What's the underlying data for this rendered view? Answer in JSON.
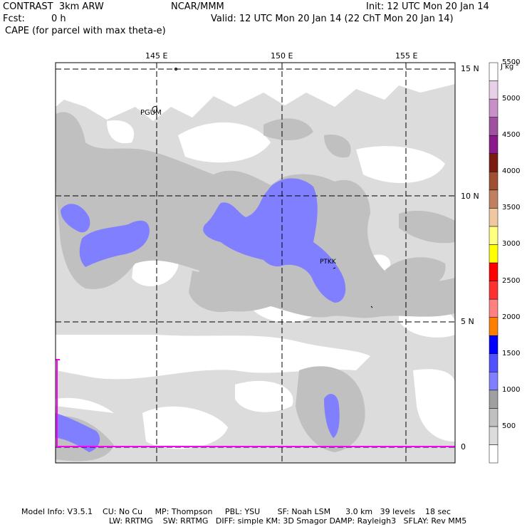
{
  "header": {
    "model": "CONTRAST  3km ARW",
    "org": "NCAR/MMM",
    "init": "Init: 12 UTC Mon 20 Jan 14",
    "fcst_label": "Fcst:",
    "fcst_value": "0 h",
    "valid": "Valid: 12 UTC Mon 20 Jan 14 (22 ChT Mon 20 Jan 14)",
    "field": "CAPE (for parcel with max theta-e)"
  },
  "map": {
    "lon_labels": [
      "145 E",
      "150 E",
      "155 E"
    ],
    "lat_labels": [
      "15 N",
      "10 N",
      "5 N",
      "0"
    ],
    "stations": [
      "PGUM",
      "PTKK"
    ]
  },
  "colorbar": {
    "unit": "J kg",
    "unit_exp": "-1",
    "tick_labels": [
      "500",
      "1000",
      "1500",
      "2000",
      "2500",
      "3000",
      "3500",
      "4000",
      "4500",
      "5000",
      "5500"
    ],
    "colors": [
      "#ffffff",
      "#dcdcdc",
      "#c0c0c0",
      "#a0a0a0",
      "#7f7fff",
      "#5050ff",
      "#0000ff",
      "#ff8000",
      "#ff8080",
      "#ff3030",
      "#ff0000",
      "#ffff00",
      "#ffff80",
      "#f0c8a0",
      "#c08060",
      "#a05030",
      "#7a1a10",
      "#8a1a8a",
      "#a050a0",
      "#c890c8",
      "#e8d0e8",
      "#ffffff"
    ]
  },
  "footer": {
    "line1": "Model Info: V3.5.1    CU: No Cu     MP: Thompson     PBL: YSU       SF: Noah LSM      3.0 km   39 levels    18 sec",
    "line2": "LW: RRTMG    SW: RRTMG   DIFF: simple KM: 3D Smagor DAMP: Rayleigh3   SFLAY: Rev MM5"
  }
}
